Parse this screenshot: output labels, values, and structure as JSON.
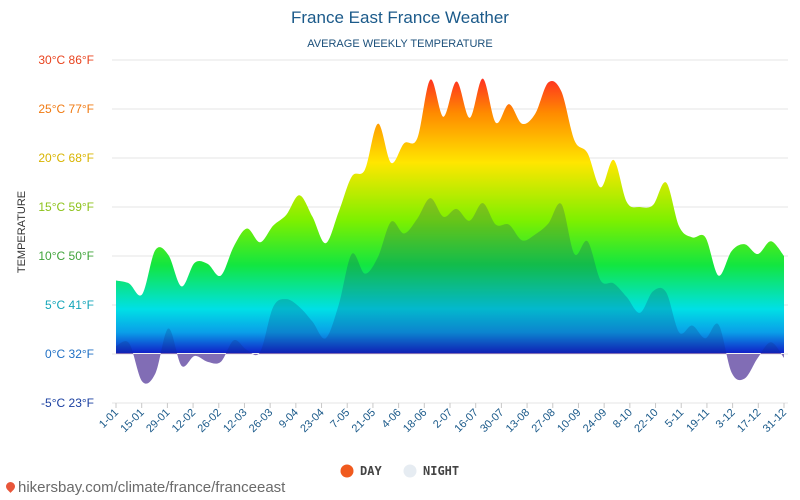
{
  "chart_data": {
    "type": "area",
    "title": "France East France Weather",
    "subtitle": "AVERAGE WEEKLY TEMPERATURE",
    "ylabel": "TEMPERATURE",
    "ylim": [
      -5,
      30
    ],
    "y_ticks": [
      {
        "value": 30,
        "label": "30°C 86°F",
        "color": "#e8431e"
      },
      {
        "value": 25,
        "label": "25°C 77°F",
        "color": "#f07a12"
      },
      {
        "value": 20,
        "label": "20°C 68°F",
        "color": "#d8b400"
      },
      {
        "value": 15,
        "label": "15°C 59°F",
        "color": "#8cc21a"
      },
      {
        "value": 10,
        "label": "10°C 50°F",
        "color": "#3fa33a"
      },
      {
        "value": 5,
        "label": "5°C 41°F",
        "color": "#12a5b8"
      },
      {
        "value": 0,
        "label": "0°C 32°F",
        "color": "#1f6fc4"
      },
      {
        "value": -5,
        "label": "-5°C 23°F",
        "color": "#1a3fa0"
      }
    ],
    "x_ticks": [
      "1-01",
      "15-01",
      "29-01",
      "12-02",
      "26-02",
      "12-03",
      "26-03",
      "9-04",
      "23-04",
      "7-05",
      "21-05",
      "4-06",
      "18-06",
      "2-07",
      "16-07",
      "30-07",
      "13-08",
      "27-08",
      "10-09",
      "24-09",
      "8-10",
      "22-10",
      "5-11",
      "19-11",
      "3-12",
      "17-12",
      "31-12"
    ],
    "series": [
      {
        "name": "DAY",
        "color": "#f05a1e",
        "values": [
          7.5,
          7.2,
          6.1,
          10.6,
          10.1,
          6.9,
          9.3,
          9.2,
          8.0,
          11.0,
          12.8,
          11.4,
          13.1,
          14.2,
          16.2,
          14.0,
          11.3,
          14.5,
          18.1,
          18.8,
          23.5,
          19.5,
          21.5,
          22.0,
          28.0,
          24.2,
          27.8,
          24.1,
          28.1,
          23.6,
          25.5,
          23.5,
          24.5,
          27.7,
          26.8,
          21.8,
          20.5,
          17.0,
          19.8,
          15.5,
          15.0,
          15.2,
          17.5,
          13.0,
          11.9,
          11.9,
          8.0,
          10.5,
          11.2,
          10.2,
          11.5,
          10.0
        ]
      },
      {
        "name": "NIGHT",
        "color": "#e6ecf2",
        "values": [
          0.8,
          1.1,
          -2.8,
          -2.0,
          2.6,
          -1.2,
          -0.2,
          -0.8,
          -0.8,
          1.4,
          0.4,
          0.2,
          4.8,
          5.6,
          4.8,
          3.3,
          1.6,
          5.0,
          10.2,
          8.2,
          9.9,
          13.5,
          12.3,
          13.8,
          15.9,
          14.0,
          14.8,
          13.6,
          15.4,
          13.2,
          13.2,
          11.6,
          12.2,
          13.3,
          15.3,
          10.2,
          11.5,
          7.5,
          7.2,
          5.8,
          4.2,
          6.4,
          6.3,
          2.2,
          2.9,
          1.6,
          3.0,
          -1.9,
          -2.5,
          -0.4,
          1.2,
          -0.4
        ]
      }
    ],
    "legend_position": "bottom",
    "grid": true
  },
  "source": "hikersbay.com/climate/france/franceeast"
}
